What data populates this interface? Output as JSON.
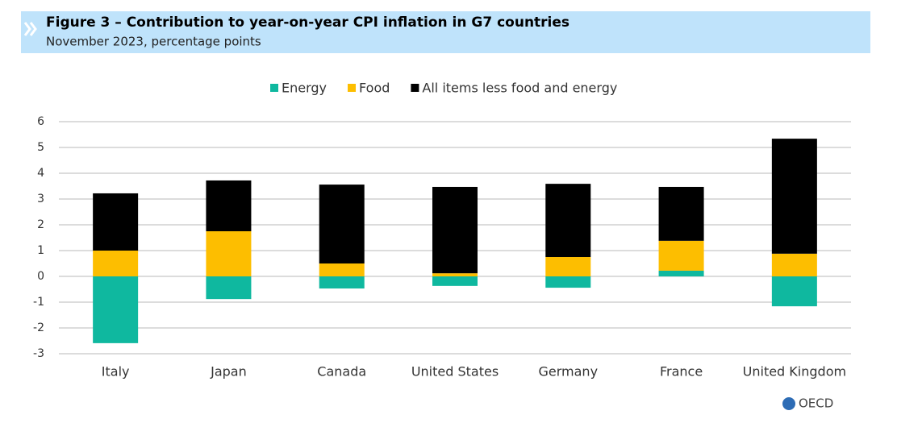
{
  "chart_data": {
    "type": "stacked-bar",
    "title": "Figure 3 – Contribution to year-on-year CPI inflation in G7 countries",
    "subtitle": "November 2023, percentage points",
    "source": "OECD",
    "categories": [
      "Italy",
      "Japan",
      "Canada",
      "United States",
      "Germany",
      "France",
      "United Kingdom"
    ],
    "series": [
      {
        "name": "Energy",
        "color": "#0fb89f",
        "values": [
          -2.59,
          -0.88,
          -0.47,
          -0.37,
          -0.44,
          0.22,
          -1.16
        ]
      },
      {
        "name": "Food",
        "color": "#fdbe00",
        "values": [
          1.0,
          1.75,
          0.5,
          0.12,
          0.75,
          1.16,
          0.88
        ]
      },
      {
        "name": "All items less food and energy",
        "color": "#000000",
        "values": [
          2.22,
          1.97,
          3.06,
          3.35,
          2.84,
          2.09,
          4.46
        ]
      }
    ],
    "ylim": [
      -3,
      6
    ],
    "yticks": [
      -3,
      -2,
      -1,
      0,
      1,
      2,
      3,
      4,
      5,
      6
    ],
    "grid": true,
    "legend": "top"
  }
}
